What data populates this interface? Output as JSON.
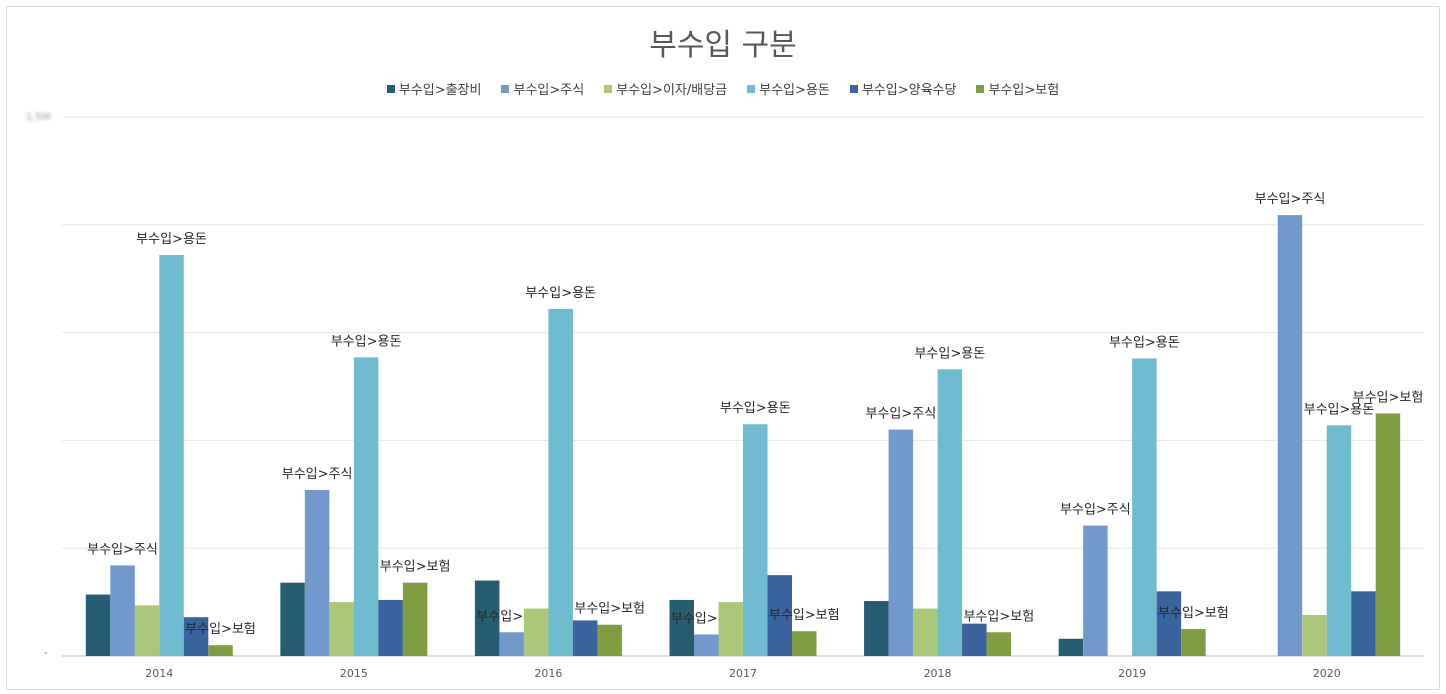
{
  "chart_data": {
    "type": "bar",
    "title": "부수입 구분",
    "categories": [
      "2014",
      "2015",
      "2016",
      "2017",
      "2018",
      "2019",
      "2020"
    ],
    "series": [
      {
        "name": "부수입>출장비",
        "color": "#255E73",
        "values": [
          0.57,
          0.68,
          0.7,
          0.52,
          0.51,
          0.16,
          0
        ]
      },
      {
        "name": "부수입>주식",
        "color": "#7199CB",
        "values": [
          0.84,
          1.54,
          0.22,
          0.2,
          2.1,
          1.21,
          4.09
        ]
      },
      {
        "name": "부수입>이자/배당금",
        "color": "#ABC878",
        "values": [
          0.47,
          0.5,
          0.44,
          0.5,
          0.44,
          0,
          0.38
        ]
      },
      {
        "name": "부수입>용돈",
        "color": "#6FBCD0",
        "values": [
          3.72,
          2.77,
          3.22,
          2.15,
          2.66,
          2.76,
          2.14
        ]
      },
      {
        "name": "부수입>양육수당",
        "color": "#3A649E",
        "values": [
          0.36,
          0.52,
          0.33,
          0.75,
          0.3,
          0.6,
          0.6
        ]
      },
      {
        "name": "부수입>보험",
        "color": "#7E9E41",
        "values": [
          0.1,
          0.68,
          0.29,
          0.23,
          0.22,
          0.25,
          2.25
        ]
      }
    ],
    "data_labels": [
      {
        "year": "2014",
        "series": [
          1,
          3,
          5
        ]
      },
      {
        "year": "2015",
        "series": [
          1,
          3,
          5
        ]
      },
      {
        "year": "2016",
        "series": [
          1,
          3,
          5
        ]
      },
      {
        "year": "2017",
        "series": [
          1,
          3,
          5
        ]
      },
      {
        "year": "2018",
        "series": [
          1,
          3,
          5
        ]
      },
      {
        "year": "2019",
        "series": [
          1,
          3,
          5
        ]
      },
      {
        "year": "2020",
        "series": [
          1,
          3,
          5
        ]
      }
    ],
    "ylim": [
      0,
      5
    ],
    "yticks": [
      "-",
      "",
      "",
      "",
      "",
      "1.5M"
    ],
    "grid": true,
    "legend": "top"
  }
}
